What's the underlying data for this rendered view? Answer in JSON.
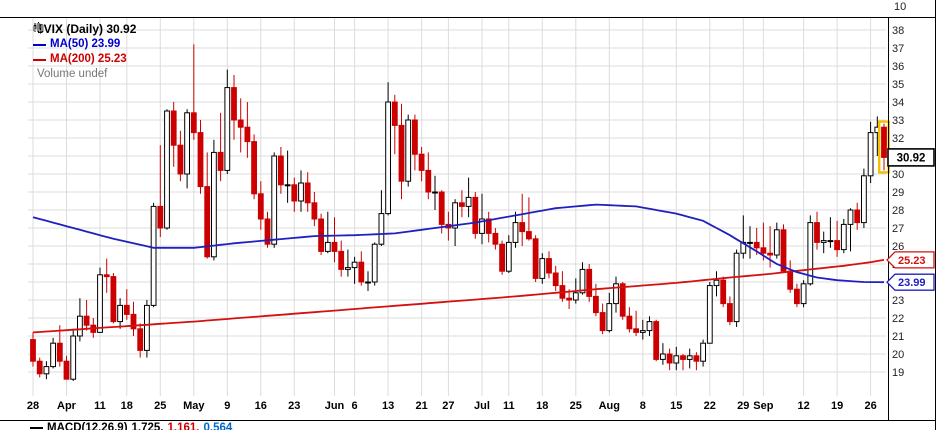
{
  "meta": {
    "upper_axis_label": "10"
  },
  "legend": {
    "symbol": "$VIX (Daily) 30.92",
    "ma50": "MA(50) 23.99",
    "ma200": "MA(200) 25.23",
    "volume": "Volume undef"
  },
  "footer": {
    "label": "MACD(12,26,9)",
    "value_macd": "1.725,",
    "value_signal": "1.161,",
    "value_hist": "0.564"
  },
  "tags": {
    "last": "30.92",
    "ma200": "25.23",
    "ma50": "23.99"
  },
  "colors": {
    "up": "#000000",
    "down": "#cc0000",
    "ma50": "#2020c0",
    "ma200": "#d41111",
    "grid": "#dcdcdc",
    "highlight": "#f3c000"
  },
  "chart_data": {
    "type": "candlestick",
    "symbol": "$VIX",
    "timeframe": "Daily",
    "last_close": 30.92,
    "ma50_value": 23.99,
    "ma200_value": 25.23,
    "volume": "undef",
    "ylim": [
      19,
      38
    ],
    "y_tick_step": 1,
    "x_ticks": [
      [
        0,
        "28"
      ],
      [
        5,
        "Apr"
      ],
      [
        10,
        "11"
      ],
      [
        14,
        "18"
      ],
      [
        19,
        "25"
      ],
      [
        24,
        "May"
      ],
      [
        29,
        "9"
      ],
      [
        34,
        "16"
      ],
      [
        39,
        "23"
      ],
      [
        45,
        "Jun"
      ],
      [
        48,
        "6"
      ],
      [
        53,
        "13"
      ],
      [
        58,
        "21"
      ],
      [
        62,
        "27"
      ],
      [
        67,
        "Jul"
      ],
      [
        71,
        "11"
      ],
      [
        76,
        "18"
      ],
      [
        81,
        "25"
      ],
      [
        86,
        "Aug"
      ],
      [
        91,
        "8"
      ],
      [
        96,
        "15"
      ],
      [
        101,
        "22"
      ],
      [
        106,
        "29"
      ],
      [
        109,
        "Sep"
      ],
      [
        115,
        "12"
      ],
      [
        120,
        "19"
      ],
      [
        125,
        "26"
      ]
    ],
    "candles": [
      [
        20.8,
        21.2,
        19.3,
        19.6
      ],
      [
        19.6,
        19.8,
        18.7,
        18.9
      ],
      [
        18.9,
        19.6,
        18.6,
        19.3
      ],
      [
        19.3,
        20.9,
        19.2,
        20.6
      ],
      [
        20.6,
        21.6,
        19.3,
        19.6
      ],
      [
        19.6,
        19.9,
        18.6,
        18.6
      ],
      [
        18.6,
        21.4,
        18.5,
        21.0
      ],
      [
        21.0,
        23.1,
        20.7,
        22.1
      ],
      [
        22.1,
        23.0,
        21.3,
        21.6
      ],
      [
        21.6,
        22.0,
        20.9,
        21.2
      ],
      [
        21.2,
        24.8,
        21.2,
        24.4
      ],
      [
        24.4,
        25.3,
        23.4,
        24.3
      ],
      [
        24.3,
        24.5,
        21.7,
        21.8
      ],
      [
        21.8,
        23.1,
        21.4,
        22.7
      ],
      [
        22.7,
        23.6,
        21.9,
        22.2
      ],
      [
        22.2,
        22.9,
        21.0,
        21.4
      ],
      [
        21.4,
        21.7,
        19.8,
        20.2
      ],
      [
        20.2,
        23.0,
        19.8,
        22.7
      ],
      [
        22.7,
        28.4,
        22.6,
        28.2
      ],
      [
        28.2,
        31.6,
        26.5,
        27.0
      ],
      [
        27.0,
        33.6,
        26.9,
        33.5
      ],
      [
        33.5,
        34.0,
        30.4,
        31.6
      ],
      [
        31.6,
        32.4,
        29.6,
        30.0
      ],
      [
        30.0,
        33.6,
        29.2,
        33.4
      ],
      [
        33.4,
        37.2,
        31.9,
        32.3
      ],
      [
        32.3,
        33.0,
        28.9,
        29.3
      ],
      [
        29.3,
        31.2,
        25.3,
        25.4
      ],
      [
        25.4,
        31.9,
        25.2,
        31.2
      ],
      [
        31.2,
        33.4,
        29.6,
        30.2
      ],
      [
        30.2,
        35.8,
        30.0,
        34.8
      ],
      [
        34.8,
        35.5,
        31.9,
        33.0
      ],
      [
        33.0,
        34.2,
        31.2,
        32.6
      ],
      [
        32.6,
        34.0,
        30.9,
        31.8
      ],
      [
        31.8,
        32.2,
        28.6,
        28.9
      ],
      [
        28.9,
        29.6,
        26.9,
        27.5
      ],
      [
        27.5,
        27.9,
        25.9,
        26.1
      ],
      [
        26.1,
        31.2,
        25.9,
        31.0
      ],
      [
        31.0,
        31.5,
        28.9,
        29.4
      ],
      [
        29.4,
        31.3,
        28.4,
        29.4
      ],
      [
        29.4,
        29.8,
        27.9,
        28.5
      ],
      [
        28.5,
        30.2,
        27.9,
        29.5
      ],
      [
        29.5,
        30.1,
        27.9,
        28.4
      ],
      [
        28.4,
        29.0,
        27.1,
        27.5
      ],
      [
        27.5,
        27.8,
        25.5,
        25.7
      ],
      [
        25.7,
        27.9,
        25.6,
        26.2
      ],
      [
        26.2,
        27.6,
        25.1,
        25.7
      ],
      [
        25.7,
        26.3,
        24.3,
        24.7
      ],
      [
        24.7,
        25.8,
        24.3,
        24.8
      ],
      [
        24.8,
        25.4,
        23.9,
        25.1
      ],
      [
        25.1,
        25.7,
        23.8,
        24.0
      ],
      [
        24.0,
        24.6,
        23.5,
        24.0
      ],
      [
        24.0,
        26.2,
        23.8,
        26.1
      ],
      [
        26.1,
        29.1,
        26.0,
        27.8
      ],
      [
        27.8,
        35.1,
        27.7,
        34.0
      ],
      [
        34.0,
        34.4,
        31.1,
        32.7
      ],
      [
        32.7,
        33.9,
        28.6,
        29.6
      ],
      [
        29.6,
        33.3,
        29.3,
        33.0
      ],
      [
        33.0,
        33.3,
        30.2,
        31.1
      ],
      [
        31.1,
        31.5,
        29.6,
        30.2
      ],
      [
        30.2,
        31.2,
        28.6,
        29.0
      ],
      [
        29.0,
        29.9,
        28.0,
        29.0
      ],
      [
        29.0,
        29.1,
        26.7,
        27.2
      ],
      [
        27.2,
        27.9,
        26.3,
        27.0
      ],
      [
        27.0,
        28.6,
        26.0,
        28.4
      ],
      [
        28.4,
        29.1,
        27.6,
        28.2
      ],
      [
        28.2,
        29.8,
        27.6,
        28.7
      ],
      [
        28.7,
        29.0,
        26.4,
        26.7
      ],
      [
        26.7,
        28.9,
        26.1,
        27.5
      ],
      [
        27.5,
        27.9,
        26.2,
        26.7
      ],
      [
        26.7,
        27.0,
        25.8,
        26.1
      ],
      [
        26.1,
        26.3,
        24.4,
        24.6
      ],
      [
        24.6,
        26.6,
        24.5,
        26.2
      ],
      [
        26.2,
        27.9,
        25.9,
        27.3
      ],
      [
        27.3,
        28.9,
        26.0,
        26.8
      ],
      [
        26.8,
        28.7,
        26.3,
        26.4
      ],
      [
        26.4,
        26.6,
        24.0,
        24.2
      ],
      [
        24.2,
        25.6,
        23.9,
        25.3
      ],
      [
        25.3,
        25.7,
        24.2,
        24.5
      ],
      [
        24.5,
        24.9,
        23.5,
        23.8
      ],
      [
        23.8,
        24.6,
        22.9,
        23.1
      ],
      [
        23.1,
        23.6,
        22.5,
        23.0
      ],
      [
        23.0,
        24.2,
        22.8,
        23.4
      ],
      [
        23.4,
        25.1,
        23.3,
        24.7
      ],
      [
        24.7,
        25.0,
        22.9,
        23.2
      ],
      [
        23.2,
        23.9,
        22.1,
        22.3
      ],
      [
        22.3,
        22.8,
        21.1,
        21.3
      ],
      [
        21.3,
        23.4,
        21.2,
        22.8
      ],
      [
        22.8,
        24.3,
        22.3,
        23.9
      ],
      [
        23.9,
        24.0,
        21.9,
        22.1
      ],
      [
        22.1,
        22.6,
        21.2,
        21.4
      ],
      [
        21.4,
        22.4,
        21.0,
        21.2
      ],
      [
        21.2,
        21.9,
        20.8,
        21.3
      ],
      [
        21.3,
        22.1,
        21.0,
        21.8
      ],
      [
        21.8,
        21.9,
        19.6,
        19.7
      ],
      [
        19.7,
        20.6,
        19.4,
        20.0
      ],
      [
        20.0,
        20.3,
        19.1,
        19.5
      ],
      [
        19.5,
        20.4,
        19.1,
        19.9
      ],
      [
        19.9,
        20.0,
        19.1,
        19.7
      ],
      [
        19.7,
        20.3,
        19.2,
        19.9
      ],
      [
        19.9,
        20.1,
        19.1,
        19.6
      ],
      [
        19.6,
        20.8,
        19.3,
        20.6
      ],
      [
        20.6,
        24.0,
        20.6,
        23.8
      ],
      [
        23.8,
        24.6,
        23.2,
        24.1
      ],
      [
        24.1,
        24.3,
        22.6,
        22.8
      ],
      [
        22.8,
        23.2,
        21.6,
        21.8
      ],
      [
        21.8,
        25.8,
        21.5,
        25.6
      ],
      [
        25.6,
        27.7,
        25.3,
        26.2
      ],
      [
        26.2,
        27.1,
        25.3,
        26.2
      ],
      [
        26.2,
        27.0,
        25.5,
        25.9
      ],
      [
        25.9,
        27.3,
        25.2,
        25.6
      ],
      [
        25.6,
        27.1,
        24.8,
        25.5
      ],
      [
        25.5,
        27.3,
        25.3,
        26.9
      ],
      [
        26.9,
        27.2,
        24.5,
        24.6
      ],
      [
        24.6,
        25.2,
        23.4,
        23.6
      ],
      [
        23.6,
        23.9,
        22.6,
        22.8
      ],
      [
        22.8,
        24.1,
        22.6,
        23.9
      ],
      [
        23.9,
        27.7,
        23.8,
        27.3
      ],
      [
        27.3,
        27.9,
        25.8,
        26.2
      ],
      [
        26.2,
        26.8,
        25.6,
        26.3
      ],
      [
        26.3,
        27.6,
        25.9,
        26.3
      ],
      [
        26.3,
        27.4,
        25.4,
        25.8
      ],
      [
        25.8,
        27.5,
        25.6,
        27.2
      ],
      [
        27.2,
        28.1,
        25.7,
        28.0
      ],
      [
        28.0,
        28.4,
        26.9,
        27.3
      ],
      [
        27.3,
        30.3,
        27.0,
        29.9
      ],
      [
        29.9,
        32.9,
        29.5,
        32.3
      ],
      [
        32.3,
        33.2,
        31.0,
        32.6
      ],
      [
        32.6,
        32.8,
        30.2,
        30.92
      ]
    ],
    "ma50": [
      [
        0,
        27.6
      ],
      [
        6,
        27.0
      ],
      [
        12,
        26.4
      ],
      [
        18,
        25.9
      ],
      [
        24,
        25.9
      ],
      [
        30,
        26.15
      ],
      [
        36,
        26.35
      ],
      [
        42,
        26.55
      ],
      [
        48,
        26.6
      ],
      [
        54,
        26.7
      ],
      [
        60,
        27.0
      ],
      [
        66,
        27.3
      ],
      [
        72,
        27.7
      ],
      [
        78,
        28.1
      ],
      [
        84,
        28.3
      ],
      [
        90,
        28.2
      ],
      [
        96,
        27.8
      ],
      [
        100,
        27.4
      ],
      [
        104,
        26.6
      ],
      [
        108,
        25.7
      ],
      [
        111,
        25.0
      ],
      [
        114,
        24.55
      ],
      [
        117,
        24.25
      ],
      [
        120,
        24.1
      ],
      [
        124,
        24.0
      ],
      [
        127,
        23.99
      ]
    ],
    "ma200": [
      [
        0,
        21.2
      ],
      [
        12,
        21.5
      ],
      [
        24,
        21.8
      ],
      [
        36,
        22.15
      ],
      [
        48,
        22.5
      ],
      [
        60,
        22.85
      ],
      [
        72,
        23.2
      ],
      [
        84,
        23.6
      ],
      [
        96,
        23.95
      ],
      [
        104,
        24.25
      ],
      [
        110,
        24.45
      ],
      [
        116,
        24.7
      ],
      [
        121,
        24.9
      ],
      [
        125,
        25.1
      ],
      [
        127,
        25.23
      ]
    ]
  }
}
